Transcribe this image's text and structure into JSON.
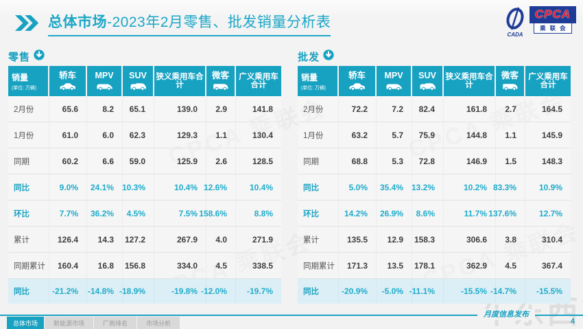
{
  "header": {
    "title_prefix": "总体市场",
    "title_rest": "-2023年2月零售、批发销量分析表"
  },
  "logo": {
    "acronym": "CPCA",
    "cn": "乘联会",
    "swoosh_sub": "CADA"
  },
  "tables": [
    {
      "id": "retail",
      "section_label": "零售",
      "measure_label": "销量",
      "measure_unit": "(单位: 万辆)",
      "columns": [
        {
          "label": "轿车",
          "icon": "sedan-car-icon"
        },
        {
          "label": "MPV",
          "icon": "mpv-car-icon"
        },
        {
          "label": "SUV",
          "icon": "suv-car-icon"
        },
        {
          "label": "狭义乘用车合计",
          "icon": null
        },
        {
          "label": "微客",
          "icon": "microvan-icon"
        },
        {
          "label": "广义乘用车合计",
          "icon": null
        }
      ],
      "rows": [
        {
          "label": "2月份",
          "style": "normal",
          "values": [
            "65.6",
            "8.2",
            "65.1",
            "139.0",
            "2.9",
            "141.8"
          ]
        },
        {
          "label": "1月份",
          "style": "normal",
          "values": [
            "61.0",
            "6.0",
            "62.3",
            "129.3",
            "1.1",
            "130.4"
          ]
        },
        {
          "label": "同期",
          "style": "normal",
          "values": [
            "60.2",
            "6.6",
            "59.0",
            "125.9",
            "2.6",
            "128.5"
          ]
        },
        {
          "label": "同比",
          "style": "rate",
          "values": [
            "9.0%",
            "24.1%",
            "10.3%",
            "10.4%",
            "12.6%",
            "10.4%"
          ]
        },
        {
          "label": "环比",
          "style": "rate",
          "values": [
            "7.7%",
            "36.2%",
            "4.5%",
            "7.5%",
            "158.6%",
            "8.8%"
          ]
        },
        {
          "label": "累计",
          "style": "normal",
          "values": [
            "126.4",
            "14.3",
            "127.2",
            "267.9",
            "4.0",
            "271.9"
          ]
        },
        {
          "label": "同期累计",
          "style": "normal",
          "values": [
            "160.4",
            "16.8",
            "156.8",
            "334.0",
            "4.5",
            "338.5"
          ]
        },
        {
          "label": "同比",
          "style": "rate-highlight",
          "values": [
            "-21.2%",
            "-14.8%",
            "-18.9%",
            "-19.8%",
            "-12.0%",
            "-19.7%"
          ]
        }
      ]
    },
    {
      "id": "wholesale",
      "section_label": "批发",
      "measure_label": "销量",
      "measure_unit": "(单位: 万辆)",
      "columns": [
        {
          "label": "轿车",
          "icon": "sedan-car-icon"
        },
        {
          "label": "MPV",
          "icon": "mpv-car-icon"
        },
        {
          "label": "SUV",
          "icon": "suv-car-icon"
        },
        {
          "label": "狭义乘用车合计",
          "icon": null
        },
        {
          "label": "微客",
          "icon": "microvan-icon"
        },
        {
          "label": "广义乘用车合计",
          "icon": null
        }
      ],
      "rows": [
        {
          "label": "2月份",
          "style": "normal",
          "values": [
            "72.2",
            "7.2",
            "82.4",
            "161.8",
            "2.7",
            "164.5"
          ]
        },
        {
          "label": "1月份",
          "style": "normal",
          "values": [
            "63.2",
            "5.7",
            "75.9",
            "144.8",
            "1.1",
            "145.9"
          ]
        },
        {
          "label": "同期",
          "style": "normal",
          "values": [
            "68.8",
            "5.3",
            "72.8",
            "146.9",
            "1.5",
            "148.3"
          ]
        },
        {
          "label": "同比",
          "style": "rate",
          "values": [
            "5.0%",
            "35.4%",
            "13.2%",
            "10.2%",
            "83.3%",
            "10.9%"
          ]
        },
        {
          "label": "环比",
          "style": "rate",
          "values": [
            "14.2%",
            "26.9%",
            "8.6%",
            "11.7%",
            "137.6%",
            "12.7%"
          ]
        },
        {
          "label": "累计",
          "style": "normal",
          "values": [
            "135.5",
            "12.9",
            "158.3",
            "306.6",
            "3.8",
            "310.4"
          ]
        },
        {
          "label": "同期累计",
          "style": "normal",
          "values": [
            "171.3",
            "13.5",
            "178.1",
            "362.9",
            "4.5",
            "367.4"
          ]
        },
        {
          "label": "同比",
          "style": "rate-highlight",
          "values": [
            "-20.9%",
            "-5.0%",
            "-11.1%",
            "-15.5%",
            "-14.7%",
            "-15.5%"
          ]
        }
      ]
    }
  ],
  "tabs": [
    {
      "label": "总体市场",
      "active": true
    },
    {
      "label": "新能源市场",
      "active": false
    },
    {
      "label": "厂商排名",
      "active": false
    },
    {
      "label": "市场分析",
      "active": false
    }
  ],
  "footer": {
    "script_text": "月度信息发布",
    "page_number": "4"
  },
  "watermarks": {
    "diagonal": "CPCA 乘联会",
    "corner": "车东西"
  },
  "colors": {
    "teal": "#18A2C2",
    "rate_text": "#1FACCC",
    "highlight_row_bg": "#DDEFF6",
    "logo_blue": "#1E3C96",
    "logo_red": "#E8192C"
  }
}
